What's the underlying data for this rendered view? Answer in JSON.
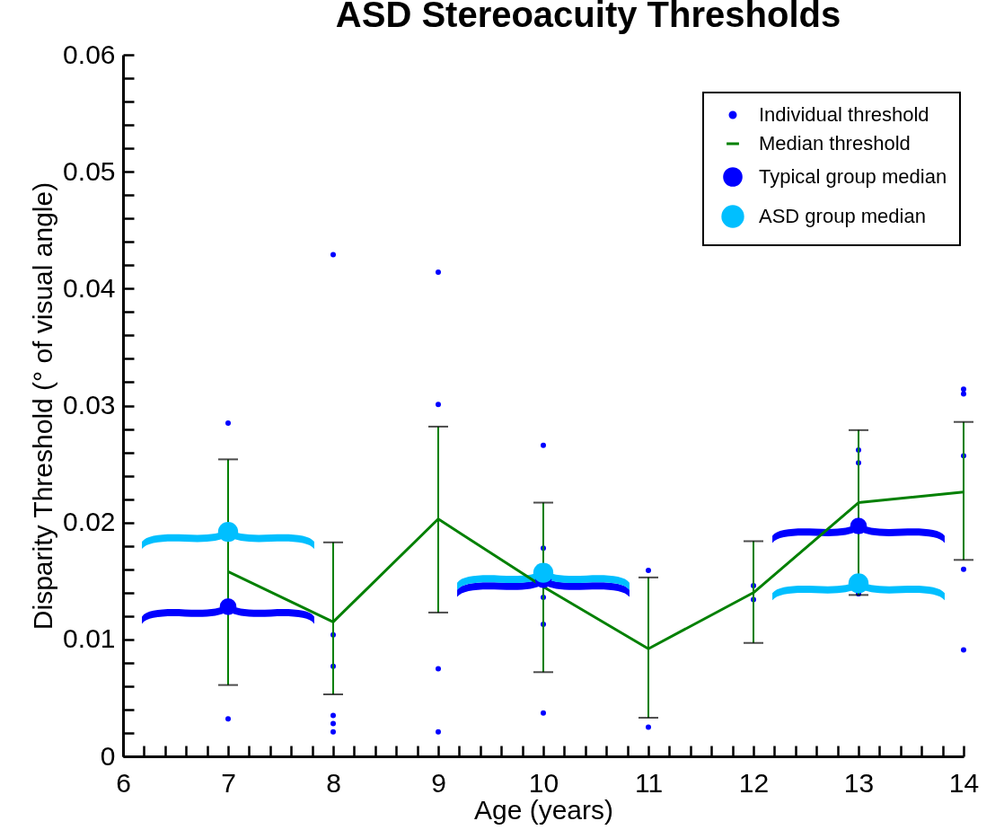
{
  "chart_data": {
    "type": "scatter",
    "title": "ASD Stereoacuity Thresholds",
    "xlabel": "Age (years)",
    "ylabel": "Disparity Threshold (° of visual angle)",
    "xlim": [
      6,
      14
    ],
    "xticks": [
      6,
      {
        "value": 6.2,
        "label": null
      },
      {
        "value": 6.4,
        "label": null
      },
      {
        "value": 6.6,
        "label": null
      },
      {
        "value": 6.8,
        "label": null
      },
      7,
      {
        "value": 7.2,
        "label": null
      },
      {
        "value": 7.4,
        "label": null
      },
      {
        "value": 7.6,
        "label": null
      },
      {
        "value": 7.8,
        "label": null
      },
      8,
      {
        "value": 8.2,
        "label": null
      },
      {
        "value": 8.4,
        "label": null
      },
      {
        "value": 8.6,
        "label": null
      },
      {
        "value": 8.8,
        "label": null
      },
      9,
      {
        "value": 9.2,
        "label": null
      },
      {
        "value": 9.4,
        "label": null
      },
      {
        "value": 9.6,
        "label": null
      },
      {
        "value": 9.8,
        "label": null
      },
      10,
      {
        "value": 10.2,
        "label": null
      },
      {
        "value": 10.4,
        "label": null
      },
      {
        "value": 10.6,
        "label": null
      },
      {
        "value": 10.8,
        "label": null
      },
      11,
      {
        "value": 11.2,
        "label": null
      },
      {
        "value": 11.4,
        "label": null
      },
      {
        "value": 11.6,
        "label": null
      },
      {
        "value": 11.8,
        "label": null
      },
      12,
      {
        "value": 12.2,
        "label": null
      },
      {
        "value": 12.4,
        "label": null
      },
      {
        "value": 12.6,
        "label": null
      },
      {
        "value": 12.8,
        "label": null
      },
      13,
      {
        "value": 13.2,
        "label": null
      },
      {
        "value": 13.4,
        "label": null
      },
      {
        "value": 13.6,
        "label": null
      },
      {
        "value": 13.8,
        "label": null
      },
      14
    ],
    "ylim": [
      0,
      0.06
    ],
    "yticks": [
      0,
      {
        "value": 0.002,
        "label": null
      },
      {
        "value": 0.004,
        "label": null
      },
      {
        "value": 0.006,
        "label": null
      },
      {
        "value": 0.008,
        "label": null
      },
      0.01,
      {
        "value": 0.012,
        "label": null
      },
      {
        "value": 0.014,
        "label": null
      },
      {
        "value": 0.016,
        "label": null
      },
      {
        "value": 0.018,
        "label": null
      },
      0.02,
      {
        "value": 0.022,
        "label": null
      },
      {
        "value": 0.024,
        "label": null
      },
      {
        "value": 0.026,
        "label": null
      },
      {
        "value": 0.028,
        "label": null
      },
      0.03,
      {
        "value": 0.032,
        "label": null
      },
      {
        "value": 0.034,
        "label": null
      },
      {
        "value": 0.036,
        "label": null
      },
      {
        "value": 0.038,
        "label": null
      },
      0.04,
      {
        "value": 0.042,
        "label": null
      },
      {
        "value": 0.044,
        "label": null
      },
      {
        "value": 0.046,
        "label": null
      },
      {
        "value": 0.048,
        "label": null
      },
      0.05,
      {
        "value": 0.052,
        "label": null
      },
      {
        "value": 0.054,
        "label": null
      },
      {
        "value": 0.056,
        "label": null
      },
      {
        "value": 0.058,
        "label": null
      },
      0.06
    ],
    "legend": "top right",
    "series": [
      {
        "name": "Individual threshold",
        "marker": "circle",
        "color": "#0000ff",
        "x": [
          7,
          7,
          8,
          8,
          8,
          8,
          8,
          8,
          9,
          9,
          9,
          9,
          10,
          10,
          10,
          10,
          10,
          11,
          11,
          12,
          12,
          13,
          13,
          13,
          14,
          14,
          14,
          14,
          14
        ],
        "values": [
          0.0285,
          0.0032,
          0.0429,
          0.0104,
          0.0077,
          0.0035,
          0.0028,
          0.0021,
          0.0414,
          0.0301,
          0.0075,
          0.0021,
          0.0266,
          0.0178,
          0.0136,
          0.0113,
          0.0037,
          0.0159,
          0.0025,
          0.0146,
          0.0134,
          0.0262,
          0.0251,
          0.0139,
          0.0314,
          0.031,
          0.0257,
          0.016,
          0.0091
        ]
      },
      {
        "name": "Median threshold",
        "type": "line",
        "marker": "none",
        "color": "#008000",
        "x": [
          7,
          8,
          9,
          10,
          11,
          12,
          13,
          14
        ],
        "values": [
          0.0158,
          0.0115,
          0.0203,
          0.0145,
          0.0092,
          0.014,
          0.0217,
          0.0226
        ],
        "errors": [
          [
            0.0061,
            0.0254
          ],
          [
            0.0053,
            0.0183
          ],
          [
            0.0123,
            0.0282
          ],
          [
            0.0072,
            0.0217
          ],
          [
            0.0033,
            0.0153
          ],
          [
            0.0097,
            0.0184
          ],
          [
            0.0138,
            0.0279
          ],
          [
            0.0168,
            0.0286
          ]
        ]
      },
      {
        "name": "Typical group median",
        "marker": "circle",
        "color": "#0000ff",
        "x": [
          7,
          10,
          13
        ],
        "values": [
          0.0128,
          0.0151,
          0.0197
        ]
      },
      {
        "name": "ASD group median",
        "marker": "circle",
        "color": "#00bfff",
        "x": [
          7,
          10,
          13
        ],
        "values": [
          0.0192,
          0.0157,
          0.0148
        ]
      }
    ]
  }
}
